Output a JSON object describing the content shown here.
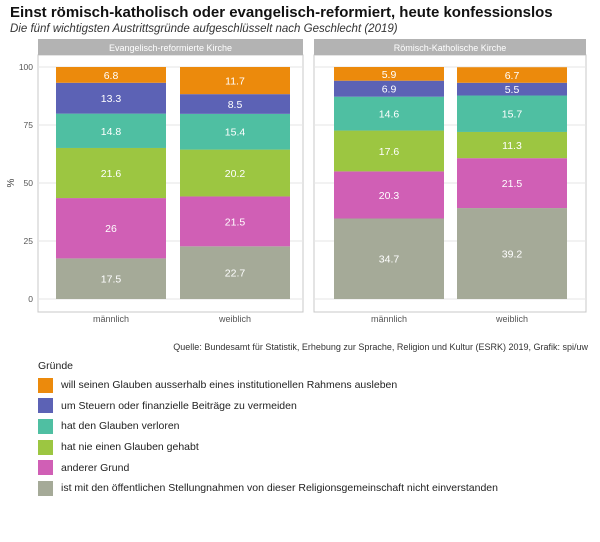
{
  "title": "Einst römisch-katholisch oder evangelisch-reformiert, heute konfessionslos",
  "subtitle": "Die fünf wichtigsten Austrittsgründe aufgeschlüsselt nach Geschlecht (2019)",
  "source": "Quelle: Bundesamt für Statistik, Erhebung zur Sprache, Religion und Kultur (ESRK) 2019, Grafik: spi/uw",
  "legend_title": "Gründe",
  "chart_data": {
    "type": "bar",
    "stacked": true,
    "ylabel": "%",
    "ylim": [
      0,
      100
    ],
    "yticks": [
      0,
      25,
      50,
      75,
      100
    ],
    "categories": [
      "männlich",
      "weiblich"
    ],
    "panels": [
      {
        "name": "Evangelisch-reformierte Kirche",
        "series": [
          {
            "name": "ist mit den öffentlichen Stellungnahmen von dieser Religionsgemeinschaft nicht einverstanden",
            "color": "#a5aa98",
            "values": [
              17.5,
              22.7
            ]
          },
          {
            "name": "anderer Grund",
            "color": "#d05fb5",
            "values": [
              26,
              21.5
            ]
          },
          {
            "name": "hat nie einen Glauben gehabt",
            "color": "#9cc641",
            "values": [
              21.6,
              20.2
            ]
          },
          {
            "name": "hat den Glauben verloren",
            "color": "#4fbfa2",
            "values": [
              14.8,
              15.4
            ]
          },
          {
            "name": "um Steuern oder finanzielle Beiträge zu vermeiden",
            "color": "#5c62b5",
            "values": [
              13.3,
              8.5
            ]
          },
          {
            "name": "will seinen Glauben ausserhalb eines institutionellen Rahmens ausleben",
            "color": "#ec8a0c",
            "values": [
              6.8,
              11.7
            ]
          }
        ]
      },
      {
        "name": "Römisch-Katholische Kirche",
        "series": [
          {
            "name": "ist mit den öffentlichen Stellungnahmen von dieser Religionsgemeinschaft nicht einverstanden",
            "color": "#a5aa98",
            "values": [
              34.7,
              39.2
            ]
          },
          {
            "name": "anderer Grund",
            "color": "#d05fb5",
            "values": [
              20.3,
              21.5
            ]
          },
          {
            "name": "hat nie einen Glauben gehabt",
            "color": "#9cc641",
            "values": [
              17.6,
              11.3
            ]
          },
          {
            "name": "hat den Glauben verloren",
            "color": "#4fbfa2",
            "values": [
              14.6,
              15.7
            ]
          },
          {
            "name": "um Steuern oder finanzielle Beiträge zu vermeiden",
            "color": "#5c62b5",
            "values": [
              6.9,
              5.5
            ]
          },
          {
            "name": "will seinen Glauben ausserhalb eines institutionellen Rahmens ausleben",
            "color": "#ec8a0c",
            "values": [
              5.9,
              6.7
            ]
          }
        ]
      }
    ],
    "legend": [
      {
        "label": "will seinen Glauben ausserhalb eines institutionellen Rahmens ausleben",
        "color": "#ec8a0c"
      },
      {
        "label": "um Steuern oder finanzielle Beiträge zu vermeiden",
        "color": "#5c62b5"
      },
      {
        "label": "hat den Glauben verloren",
        "color": "#4fbfa2"
      },
      {
        "label": "hat nie einen Glauben gehabt",
        "color": "#9cc641"
      },
      {
        "label": "anderer Grund",
        "color": "#d05fb5"
      },
      {
        "label": "ist mit den öffentlichen Stellungnahmen von dieser Religionsgemeinschaft nicht einverstanden",
        "color": "#a5aa98"
      }
    ]
  }
}
